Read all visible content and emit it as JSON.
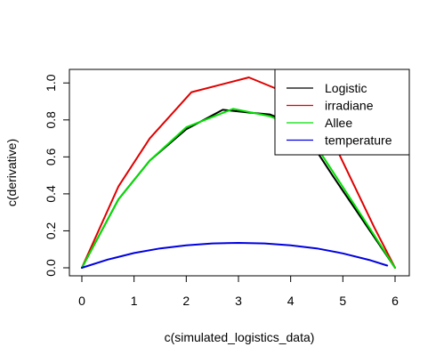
{
  "chart_data": {
    "type": "line",
    "title": "",
    "xlabel": "c(simulated_logistics_data)",
    "ylabel": "c(derivative)",
    "xlim": [
      0,
      6
    ],
    "ylim": [
      0,
      1.03
    ],
    "xticks": [
      "0",
      "1",
      "2",
      "3",
      "4",
      "5",
      "6"
    ],
    "yticks": [
      "0.0",
      "0.2",
      "0.4",
      "0.6",
      "0.8",
      "1.0"
    ],
    "grid": false,
    "legend_position": "top-right",
    "series": [
      {
        "name": "Logistic",
        "color": "#000000",
        "x": [
          0,
          0.7,
          1.3,
          2.0,
          2.7,
          3.2,
          3.6,
          4.2,
          4.8,
          5.4,
          6.0
        ],
        "y": [
          0,
          0.37,
          0.58,
          0.75,
          0.855,
          0.84,
          0.83,
          0.76,
          0.5,
          0.25,
          0
        ]
      },
      {
        "name": "irradiane",
        "color": "#e00000",
        "x": [
          0,
          0.7,
          1.3,
          2.1,
          3.2,
          3.8,
          4.7,
          5.6,
          6.0
        ],
        "y": [
          0,
          0.44,
          0.7,
          0.95,
          1.03,
          0.96,
          0.75,
          0.22,
          0
        ]
      },
      {
        "name": "Allee",
        "color": "#00e000",
        "x": [
          0,
          0.7,
          1.3,
          2.0,
          2.9,
          3.6,
          4.3,
          4.9,
          5.5,
          6.0
        ],
        "y": [
          0,
          0.37,
          0.58,
          0.76,
          0.86,
          0.82,
          0.74,
          0.48,
          0.22,
          0
        ]
      },
      {
        "name": "temperature",
        "color": "#0000e0",
        "x": [
          0,
          0.5,
          1.0,
          1.5,
          2.0,
          2.5,
          3.0,
          3.5,
          4.0,
          4.5,
          5.0,
          5.5,
          5.85
        ],
        "y": [
          0,
          0.045,
          0.08,
          0.105,
          0.122,
          0.132,
          0.135,
          0.132,
          0.122,
          0.105,
          0.078,
          0.043,
          0.012
        ]
      }
    ]
  }
}
